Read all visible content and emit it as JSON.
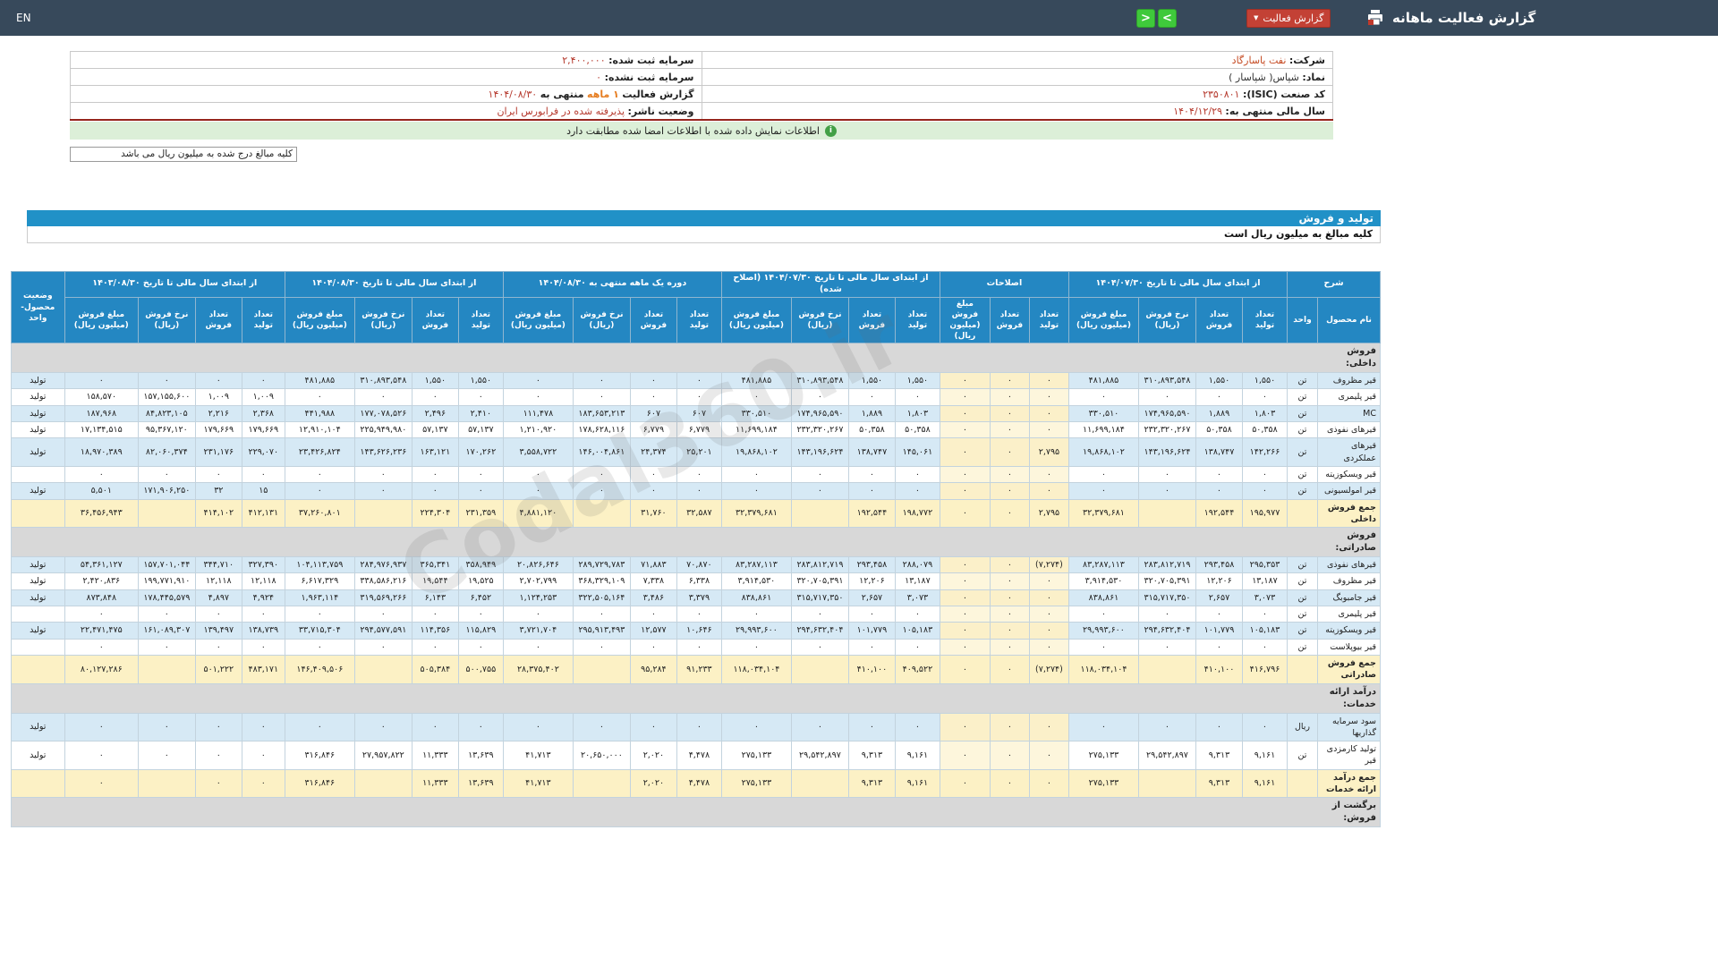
{
  "topbar": {
    "lang": "EN",
    "title": "گزارش فعالیت ماهانه",
    "report_button": "گزارش فعالیت",
    "prev": "<",
    "next": ">"
  },
  "info": {
    "right": [
      {
        "label": "شرکت:",
        "value": "نفت پاسارگاد"
      },
      {
        "label": "نماد:",
        "value": "شپاس( شپاسار )"
      },
      {
        "label": "کد صنعت (ISIC):",
        "value": "۲۳۵۰۸۰۱"
      },
      {
        "label": "سال مالی منتهی به:",
        "value": "۱۴۰۴/۱۲/۲۹"
      }
    ],
    "left": [
      {
        "label": "سرمایه ثبت شده:",
        "value": "۲,۴۰۰,۰۰۰"
      },
      {
        "label": "سرمایه ثبت نشده:",
        "value": "۰"
      },
      {
        "label": "گزارش فعالیت",
        "highlight": "۱ ماهه",
        "mid": "منتهی به",
        "value": "۱۴۰۴/۰۸/۳۰"
      },
      {
        "label": "وضعیت ناشر:",
        "value": "پذیرفته شده در فرابورس ایران"
      }
    ]
  },
  "notice": "اطلاعات نمایش داده شده با اطلاعات امضا شده مطابقت دارد",
  "amounts_box": "کلیه مبالغ درج شده به میلیون ریال می باشد",
  "section_bar": "تولید و فروش",
  "amounts_note": "کلیه مبالغ به میلیون ریال است",
  "watermark": "Codal360.ir",
  "table": {
    "desc_header": "شرح",
    "name_header": "نام محصول",
    "unit_header": "واحد",
    "status_header": "وضعیت محصول-واحد",
    "groups": [
      {
        "label": "از ابتدای سال مالی تا تاریخ ۱۴۰۴/۰۷/۳۰",
        "cols": 4
      },
      {
        "label": "اصلاحات",
        "cols": 3
      },
      {
        "label": "از ابتدای سال مالی تا تاریخ ۱۴۰۴/۰۷/۳۰ (اصلاح شده)",
        "cols": 4
      },
      {
        "label": "دوره یک ماهه منتهی به ۱۴۰۴/۰۸/۳۰",
        "cols": 4
      },
      {
        "label": "از ابتدای سال مالی تا تاریخ ۱۴۰۴/۰۸/۳۰",
        "cols": 4
      },
      {
        "label": "از ابتدای سال مالی تا تاریخ ۱۴۰۳/۰۸/۳۰",
        "cols": 4
      }
    ],
    "subcols4": [
      "تعداد تولید",
      "تعداد فروش",
      "نرخ فروش (ریال)",
      "مبلغ فروش (میلیون ریال)"
    ],
    "subcols3": [
      "تعداد تولید",
      "تعداد فروش",
      "مبلغ فروش (میلیون ریال)"
    ],
    "rows": [
      {
        "type": "section",
        "name": "فروش داخلی:"
      },
      {
        "type": "data",
        "name": "قیر مظروف",
        "unit": "تن",
        "status": "تولید",
        "cells": [
          "۱,۵۵۰",
          "۱,۵۵۰",
          "۳۱۰,۸۹۳,۵۴۸",
          "۴۸۱,۸۸۵",
          "۰",
          "۰",
          "۰",
          "۱,۵۵۰",
          "۱,۵۵۰",
          "۳۱۰,۸۹۳,۵۴۸",
          "۴۸۱,۸۸۵",
          "۰",
          "۰",
          "۰",
          "۰",
          "۱,۵۵۰",
          "۱,۵۵۰",
          "۳۱۰,۸۹۳,۵۴۸",
          "۴۸۱,۸۸۵",
          "۰",
          "۰",
          "۰",
          "۰"
        ]
      },
      {
        "type": "data",
        "name": "قیر پلیمری",
        "unit": "تن",
        "status": "تولید",
        "cells": [
          "۰",
          "۰",
          "۰",
          "۰",
          "۰",
          "۰",
          "۰",
          "۰",
          "۰",
          "۰",
          "۰",
          "۰",
          "۰",
          "۰",
          "۰",
          "۰",
          "۰",
          "۰",
          "۰",
          "۱,۰۰۹",
          "۱,۰۰۹",
          "۱۵۷,۱۵۵,۶۰۰",
          "۱۵۸,۵۷۰"
        ]
      },
      {
        "type": "data",
        "name": "MC",
        "unit": "تن",
        "status": "تولید",
        "cells": [
          "۱,۸۰۳",
          "۱,۸۸۹",
          "۱۷۴,۹۶۵,۵۹۰",
          "۳۳۰,۵۱۰",
          "۰",
          "۰",
          "۰",
          "۱,۸۰۳",
          "۱,۸۸۹",
          "۱۷۴,۹۶۵,۵۹۰",
          "۳۳۰,۵۱۰",
          "۶۰۷",
          "۶۰۷",
          "۱۸۳,۶۵۳,۲۱۳",
          "۱۱۱,۴۷۸",
          "۲,۴۱۰",
          "۲,۴۹۶",
          "۱۷۷,۰۷۸,۵۲۶",
          "۴۴۱,۹۸۸",
          "۲,۳۶۸",
          "۲,۲۱۶",
          "۸۴,۸۲۳,۱۰۵",
          "۱۸۷,۹۶۸"
        ]
      },
      {
        "type": "data",
        "name": "قیرهای نفوذی",
        "unit": "تن",
        "status": "تولید",
        "cells": [
          "۵۰,۳۵۸",
          "۵۰,۳۵۸",
          "۲۳۲,۳۲۰,۲۶۷",
          "۱۱,۶۹۹,۱۸۴",
          "۰",
          "۰",
          "۰",
          "۵۰,۳۵۸",
          "۵۰,۳۵۸",
          "۲۳۲,۳۲۰,۲۶۷",
          "۱۱,۶۹۹,۱۸۴",
          "۶,۷۷۹",
          "۶,۷۷۹",
          "۱۷۸,۶۲۸,۱۱۶",
          "۱,۲۱۰,۹۲۰",
          "۵۷,۱۳۷",
          "۵۷,۱۳۷",
          "۲۲۵,۹۴۹,۹۸۰",
          "۱۲,۹۱۰,۱۰۴",
          "۱۷۹,۶۶۹",
          "۱۷۹,۶۶۹",
          "۹۵,۳۶۷,۱۲۰",
          "۱۷,۱۳۴,۵۱۵"
        ]
      },
      {
        "type": "data",
        "name": "قیرهای عملکردی",
        "unit": "تن",
        "status": "تولید",
        "cells": [
          "۱۴۲,۲۶۶",
          "۱۳۸,۷۴۷",
          "۱۴۳,۱۹۶,۶۲۴",
          "۱۹,۸۶۸,۱۰۲",
          "۲,۷۹۵",
          "۰",
          "۰",
          "۱۴۵,۰۶۱",
          "۱۳۸,۷۴۷",
          "۱۴۳,۱۹۶,۶۲۴",
          "۱۹,۸۶۸,۱۰۲",
          "۲۵,۲۰۱",
          "۲۴,۳۷۴",
          "۱۴۶,۰۰۴,۸۶۱",
          "۳,۵۵۸,۷۲۲",
          "۱۷۰,۲۶۲",
          "۱۶۳,۱۲۱",
          "۱۴۳,۶۲۶,۲۳۶",
          "۲۳,۴۲۶,۸۲۴",
          "۲۲۹,۰۷۰",
          "۲۳۱,۱۷۶",
          "۸۲,۰۶۰,۳۷۴",
          "۱۸,۹۷۰,۳۸۹"
        ]
      },
      {
        "type": "data",
        "name": "قیر ویسکوزیته",
        "unit": "تن",
        "status": "",
        "cells": [
          "۰",
          "۰",
          "۰",
          "۰",
          "۰",
          "۰",
          "۰",
          "۰",
          "۰",
          "۰",
          "۰",
          "۰",
          "۰",
          "۰",
          "۰",
          "۰",
          "۰",
          "۰",
          "۰",
          "۰",
          "۰",
          "۰",
          "۰"
        ]
      },
      {
        "type": "data",
        "name": "قیر امولسیونی",
        "unit": "تن",
        "status": "تولید",
        "cells": [
          "۰",
          "۰",
          "۰",
          "۰",
          "۰",
          "۰",
          "۰",
          "۰",
          "۰",
          "۰",
          "۰",
          "۰",
          "۰",
          "۰",
          "۰",
          "۰",
          "۰",
          "۰",
          "۰",
          "۱۵",
          "۳۲",
          "۱۷۱,۹۰۶,۲۵۰",
          "۵,۵۰۱"
        ]
      },
      {
        "type": "subtotal",
        "name": "جمع فروش داخلی",
        "unit": "",
        "status": "",
        "cells": [
          "۱۹۵,۹۷۷",
          "۱۹۲,۵۴۴",
          "",
          "۳۲,۳۷۹,۶۸۱",
          "۲,۷۹۵",
          "۰",
          "۰",
          "۱۹۸,۷۷۲",
          "۱۹۲,۵۴۴",
          "",
          "۳۲,۳۷۹,۶۸۱",
          "۳۲,۵۸۷",
          "۳۱,۷۶۰",
          "",
          "۴,۸۸۱,۱۲۰",
          "۲۳۱,۳۵۹",
          "۲۲۴,۳۰۴",
          "",
          "۳۷,۲۶۰,۸۰۱",
          "۴۱۲,۱۳۱",
          "۴۱۴,۱۰۲",
          "",
          "۳۶,۴۵۶,۹۴۳"
        ]
      },
      {
        "type": "section",
        "name": "فروش صادراتی:"
      },
      {
        "type": "data",
        "name": "قیرهای نفوذی",
        "unit": "تن",
        "status": "تولید",
        "cells": [
          "۲۹۵,۳۵۳",
          "۲۹۳,۴۵۸",
          "۲۸۳,۸۱۲,۷۱۹",
          "۸۳,۲۸۷,۱۱۳",
          "(۷,۲۷۴)",
          "۰",
          "۰",
          "۲۸۸,۰۷۹",
          "۲۹۳,۴۵۸",
          "۲۸۳,۸۱۲,۷۱۹",
          "۸۳,۲۸۷,۱۱۳",
          "۷۰,۸۷۰",
          "۷۱,۸۸۳",
          "۲۸۹,۷۲۹,۷۸۳",
          "۲۰,۸۲۶,۶۴۶",
          "۳۵۸,۹۴۹",
          "۳۶۵,۳۴۱",
          "۲۸۴,۹۷۶,۹۳۷",
          "۱۰۴,۱۱۳,۷۵۹",
          "۳۲۷,۳۹۰",
          "۳۴۴,۷۱۰",
          "۱۵۷,۷۰۱,۰۴۴",
          "۵۴,۳۶۱,۱۲۷"
        ]
      },
      {
        "type": "data",
        "name": "قیر مظروف",
        "unit": "تن",
        "status": "تولید",
        "cells": [
          "۱۳,۱۸۷",
          "۱۲,۲۰۶",
          "۳۲۰,۷۰۵,۳۹۱",
          "۳,۹۱۴,۵۳۰",
          "۰",
          "۰",
          "۰",
          "۱۳,۱۸۷",
          "۱۲,۲۰۶",
          "۳۲۰,۷۰۵,۳۹۱",
          "۳,۹۱۴,۵۳۰",
          "۶,۳۳۸",
          "۷,۳۳۸",
          "۳۶۸,۳۲۹,۱۰۹",
          "۲,۷۰۲,۷۹۹",
          "۱۹,۵۲۵",
          "۱۹,۵۴۴",
          "۳۳۸,۵۸۶,۲۱۶",
          "۶,۶۱۷,۳۲۹",
          "۱۲,۱۱۸",
          "۱۲,۱۱۸",
          "۱۹۹,۷۷۱,۹۱۰",
          "۲,۴۲۰,۸۳۶"
        ]
      },
      {
        "type": "data",
        "name": "قیر جامبوبگ",
        "unit": "تن",
        "status": "تولید",
        "cells": [
          "۳,۰۷۳",
          "۲,۶۵۷",
          "۳۱۵,۷۱۷,۳۵۰",
          "۸۳۸,۸۶۱",
          "۰",
          "۰",
          "۰",
          "۳,۰۷۳",
          "۲,۶۵۷",
          "۳۱۵,۷۱۷,۳۵۰",
          "۸۳۸,۸۶۱",
          "۳,۳۷۹",
          "۳,۴۸۶",
          "۳۲۲,۵۰۵,۱۶۴",
          "۱,۱۲۴,۲۵۳",
          "۶,۴۵۲",
          "۶,۱۴۳",
          "۳۱۹,۵۶۹,۲۶۶",
          "۱,۹۶۳,۱۱۴",
          "۴,۹۲۴",
          "۴,۸۹۷",
          "۱۷۸,۴۴۵,۵۷۹",
          "۸۷۳,۸۴۸"
        ]
      },
      {
        "type": "data",
        "name": "قیر پلیمری",
        "unit": "تن",
        "status": "",
        "cells": [
          "۰",
          "۰",
          "۰",
          "۰",
          "۰",
          "۰",
          "۰",
          "۰",
          "۰",
          "۰",
          "۰",
          "۰",
          "۰",
          "۰",
          "۰",
          "۰",
          "۰",
          "۰",
          "۰",
          "۰",
          "۰",
          "۰",
          "۰"
        ]
      },
      {
        "type": "data",
        "name": "قیر ویسکوزیته",
        "unit": "تن",
        "status": "تولید",
        "cells": [
          "۱۰۵,۱۸۳",
          "۱۰۱,۷۷۹",
          "۲۹۴,۶۳۲,۴۰۴",
          "۲۹,۹۹۳,۶۰۰",
          "۰",
          "۰",
          "۰",
          "۱۰۵,۱۸۳",
          "۱۰۱,۷۷۹",
          "۲۹۴,۶۳۲,۴۰۴",
          "۲۹,۹۹۳,۶۰۰",
          "۱۰,۶۴۶",
          "۱۲,۵۷۷",
          "۲۹۵,۹۱۳,۴۹۳",
          "۳,۷۲۱,۷۰۴",
          "۱۱۵,۸۲۹",
          "۱۱۴,۳۵۶",
          "۲۹۴,۵۷۷,۵۹۱",
          "۳۳,۷۱۵,۳۰۴",
          "۱۳۸,۷۳۹",
          "۱۳۹,۴۹۷",
          "۱۶۱,۰۸۹,۳۰۷",
          "۲۲,۴۷۱,۴۷۵"
        ]
      },
      {
        "type": "data",
        "name": "قیر بیوپلاست",
        "unit": "تن",
        "status": "",
        "cells": [
          "۰",
          "۰",
          "۰",
          "۰",
          "۰",
          "۰",
          "۰",
          "۰",
          "۰",
          "۰",
          "۰",
          "۰",
          "۰",
          "۰",
          "۰",
          "۰",
          "۰",
          "۰",
          "۰",
          "۰",
          "۰",
          "۰",
          "۰"
        ]
      },
      {
        "type": "subtotal",
        "name": "جمع فروش صادراتی",
        "unit": "",
        "status": "",
        "cells": [
          "۴۱۶,۷۹۶",
          "۴۱۰,۱۰۰",
          "",
          "۱۱۸,۰۳۴,۱۰۴",
          "(۷,۲۷۴)",
          "۰",
          "۰",
          "۴۰۹,۵۲۲",
          "۴۱۰,۱۰۰",
          "",
          "۱۱۸,۰۳۴,۱۰۴",
          "۹۱,۲۳۳",
          "۹۵,۲۸۴",
          "",
          "۲۸,۳۷۵,۴۰۲",
          "۵۰۰,۷۵۵",
          "۵۰۵,۳۸۴",
          "",
          "۱۴۶,۴۰۹,۵۰۶",
          "۴۸۳,۱۷۱",
          "۵۰۱,۲۲۲",
          "",
          "۸۰,۱۲۷,۲۸۶"
        ]
      },
      {
        "type": "section",
        "name": "درآمد ارائه خدمات:"
      },
      {
        "type": "data",
        "name": "سود سرمایه گذاریها",
        "unit": "ریال",
        "status": "تولید",
        "cells": [
          "۰",
          "۰",
          "۰",
          "۰",
          "۰",
          "۰",
          "۰",
          "۰",
          "۰",
          "۰",
          "۰",
          "۰",
          "۰",
          "۰",
          "۰",
          "۰",
          "۰",
          "۰",
          "۰",
          "۰",
          "۰",
          "۰",
          "۰"
        ]
      },
      {
        "type": "data",
        "name": "تولید کارمزدی قیر",
        "unit": "تن",
        "status": "تولید",
        "cells": [
          "۹,۱۶۱",
          "۹,۳۱۳",
          "۲۹,۵۴۲,۸۹۷",
          "۲۷۵,۱۳۳",
          "۰",
          "۰",
          "۰",
          "۹,۱۶۱",
          "۹,۳۱۳",
          "۲۹,۵۴۲,۸۹۷",
          "۲۷۵,۱۳۳",
          "۴,۴۷۸",
          "۲,۰۲۰",
          "۲۰,۶۵۰,۰۰۰",
          "۴۱,۷۱۳",
          "۱۳,۶۳۹",
          "۱۱,۳۳۳",
          "۲۷,۹۵۷,۸۲۲",
          "۳۱۶,۸۴۶",
          "۰",
          "۰",
          "۰",
          "۰"
        ]
      },
      {
        "type": "subtotal",
        "name": "جمع درآمد ارائه خدمات",
        "unit": "",
        "status": "",
        "cells": [
          "۹,۱۶۱",
          "۹,۳۱۳",
          "",
          "۲۷۵,۱۳۳",
          "۰",
          "۰",
          "۰",
          "۹,۱۶۱",
          "۹,۳۱۳",
          "",
          "۲۷۵,۱۳۳",
          "۴,۴۷۸",
          "۲,۰۲۰",
          "",
          "۴۱,۷۱۳",
          "۱۳,۶۳۹",
          "۱۱,۳۳۳",
          "",
          "۳۱۶,۸۴۶",
          "۰",
          "۰",
          "",
          "۰"
        ]
      },
      {
        "type": "section",
        "name": "برگشت از فروش:"
      }
    ]
  }
}
